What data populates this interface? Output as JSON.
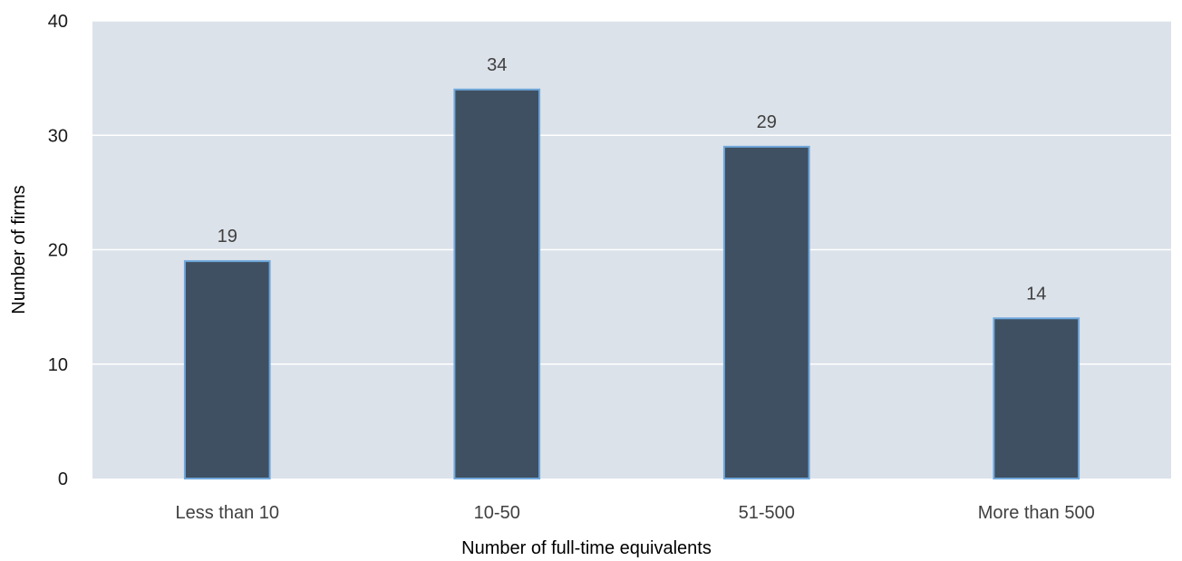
{
  "chart_data": {
    "type": "bar",
    "title": "",
    "xlabel": "Number of full-time equivalents",
    "ylabel": "Number of firms",
    "categories": [
      "Less than 10",
      "10-50",
      "51-500",
      "More than 500"
    ],
    "values": [
      19,
      34,
      29,
      14
    ],
    "data_labels": [
      "19",
      "34",
      "29",
      "14"
    ],
    "ylim": [
      0,
      40
    ],
    "yticks": [
      "0",
      "10",
      "20",
      "30",
      "40"
    ],
    "grid": true,
    "legend": "none",
    "colors": {
      "plot_background": "#dce2ea",
      "bar_fill": "#3f5062",
      "bar_edge": "#6fa8dc",
      "gridline": "#ffffff"
    }
  }
}
